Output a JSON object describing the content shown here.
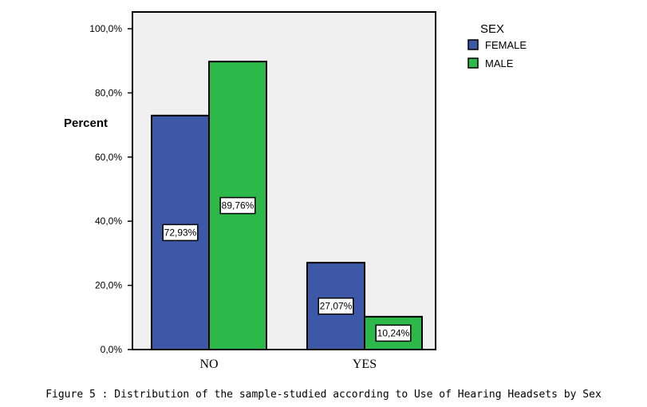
{
  "chart_data": {
    "type": "bar",
    "categories": [
      "NO",
      "YES"
    ],
    "series": [
      {
        "name": "FEMALE",
        "values": [
          72.93,
          27.07
        ],
        "labels": [
          "72,93%",
          "27,07%"
        ],
        "color": "#3d58a6"
      },
      {
        "name": "MALE",
        "values": [
          89.76,
          10.24
        ],
        "labels": [
          "89,76%",
          "10,24%"
        ],
        "color": "#2db84a"
      }
    ],
    "ylabel": "Percent",
    "ylim": [
      0,
      100
    ],
    "yticks": [
      0,
      20,
      40,
      60,
      80,
      100
    ],
    "ytick_labels": [
      "0,0%",
      "20,0%",
      "40,0%",
      "60,0%",
      "80,0%",
      "100,0%"
    ],
    "legend_title": "SEX",
    "legend_position": "top-right, outside plot",
    "plot_background": "#f0f0f0",
    "grid": false
  },
  "caption": "Figure 5 : Distribution of the sample-studied according to Use of Hearing Headsets by Sex"
}
